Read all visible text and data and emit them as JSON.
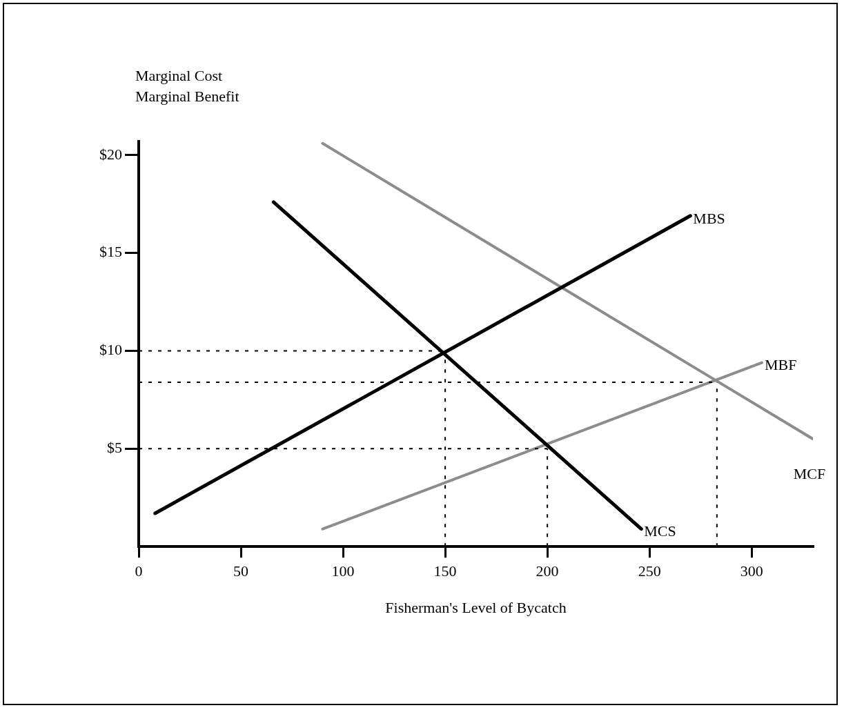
{
  "chart_data": {
    "type": "line",
    "xlabel": "Fisherman's Level of Bycatch",
    "ylabel": "Marginal Cost\nMarginal Benefit",
    "xlim": [
      0,
      330
    ],
    "xticks": [
      0,
      50,
      100,
      150,
      200,
      250,
      300
    ],
    "ylim": [
      0,
      20.7
    ],
    "yticks": [
      {
        "value": 5,
        "label": "$5"
      },
      {
        "value": 10,
        "label": "$10"
      },
      {
        "value": 15,
        "label": "$15"
      },
      {
        "value": 20,
        "label": "$20"
      }
    ],
    "grid": false,
    "legend": false,
    "marker": "none",
    "series": [
      {
        "name": "MBS",
        "color": "#000000",
        "x": [
          8,
          270
        ],
        "values": [
          1.7,
          16.9
        ]
      },
      {
        "name": "MCS",
        "color": "#000000",
        "x": [
          66,
          246
        ],
        "values": [
          17.6,
          0.9
        ]
      },
      {
        "name": "MCF",
        "color": "#8c8c8c",
        "x": [
          90,
          330
        ],
        "values": [
          20.6,
          5.5
        ]
      },
      {
        "name": "MBF",
        "color": "#8c8c8c",
        "x": [
          90,
          305
        ],
        "values": [
          0.9,
          9.4
        ]
      },
      {
        "color": "#000000",
        "line_style": "dashed",
        "x": [
          0,
          150
        ],
        "values": [
          10,
          10
        ]
      },
      {
        "color": "#000000",
        "line_style": "dashed",
        "x": [
          0,
          283
        ],
        "values": [
          8.4,
          8.4
        ]
      },
      {
        "color": "#000000",
        "line_style": "dashed",
        "x": [
          0,
          200
        ],
        "values": [
          5,
          5
        ]
      },
      {
        "color": "#000000",
        "line_style": "dashed",
        "x": [
          150,
          150
        ],
        "values": [
          0,
          10
        ]
      },
      {
        "color": "#000000",
        "line_style": "dashed",
        "x": [
          200,
          200
        ],
        "values": [
          0,
          5
        ]
      },
      {
        "color": "#000000",
        "line_style": "dashed",
        "x": [
          283,
          283
        ],
        "values": [
          0,
          8.4
        ]
      }
    ]
  }
}
